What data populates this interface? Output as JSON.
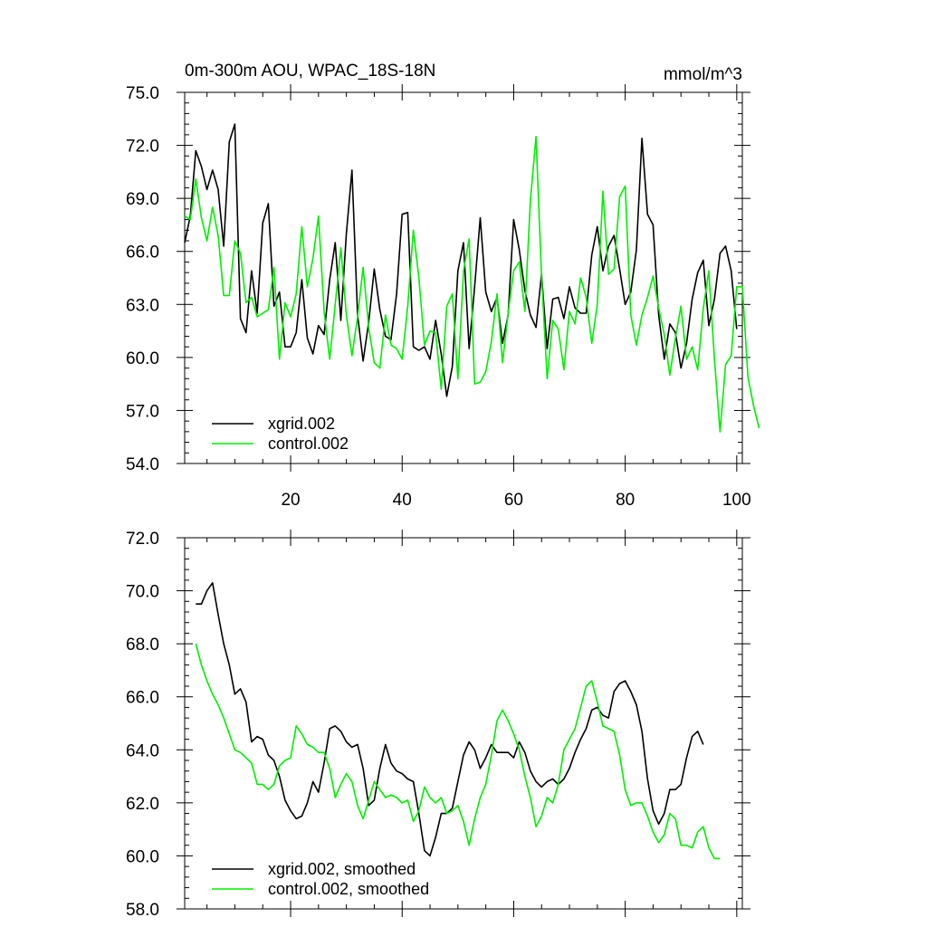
{
  "chart_data": [
    {
      "type": "line",
      "title": "0m-300m AOU, WPAC_18S-18N",
      "units": "mmol/m^3",
      "xlim": [
        1,
        101
      ],
      "ylim": [
        54,
        75
      ],
      "xticks": [
        20,
        40,
        60,
        80,
        100
      ],
      "yticks": [
        54,
        57,
        60,
        63,
        66,
        69,
        72,
        75
      ],
      "ytick_labels": [
        "54.0",
        "57.0",
        "60.0",
        "63.0",
        "66.0",
        "69.0",
        "72.0",
        "75.0"
      ],
      "show_xtick_labels": true,
      "series": [
        {
          "name": "xgrid.002",
          "color": "#000000",
          "x_start": 1,
          "values": [
            66.5,
            68.0,
            71.7,
            70.8,
            69.5,
            70.6,
            69.5,
            66.3,
            72.2,
            73.2,
            62.2,
            61.4,
            64.9,
            62.5,
            67.6,
            68.7,
            62.9,
            63.7,
            60.6,
            60.6,
            61.4,
            64.4,
            61.1,
            60.2,
            61.8,
            61.3,
            64.4,
            66.5,
            62.1,
            67.0,
            70.6,
            62.4,
            59.8,
            62.0,
            65.0,
            62.7,
            61.2,
            61.0,
            63.6,
            68.1,
            68.2,
            60.6,
            60.4,
            60.6,
            59.9,
            62.1,
            60.2,
            57.8,
            59.5,
            64.9,
            66.5,
            60.5,
            64.0,
            67.9,
            63.7,
            62.6,
            63.4,
            60.8,
            62.4,
            67.8,
            66.1,
            63.8,
            62.4,
            61.7,
            64.7,
            60.5,
            63.3,
            63.4,
            62.2,
            64.0,
            62.8,
            62.5,
            62.5,
            65.8,
            67.4,
            64.9,
            66.3,
            66.9,
            65.0,
            63.0,
            63.7,
            66.1,
            72.4,
            68.1,
            67.5,
            62.4,
            59.9,
            61.9,
            61.4,
            59.4,
            60.8,
            63.3,
            64.8,
            65.5,
            61.8,
            63.3,
            65.9,
            66.3,
            64.9,
            61.6
          ]
        },
        {
          "name": "control.002",
          "color": "#00ee00",
          "x_start": 1,
          "values": [
            68.0,
            67.8,
            70.1,
            67.9,
            66.6,
            68.5,
            66.9,
            63.5,
            63.5,
            66.6,
            65.9,
            63.1,
            63.4,
            62.3,
            62.5,
            62.7,
            65.1,
            59.9,
            63.1,
            62.3,
            63.6,
            67.4,
            64.0,
            65.6,
            68.0,
            62.6,
            59.9,
            63.0,
            66.2,
            62.4,
            60.1,
            62.3,
            65.1,
            61.7,
            59.7,
            59.4,
            62.4,
            60.7,
            60.5,
            59.9,
            62.9,
            67.2,
            64.5,
            60.7,
            61.5,
            61.4,
            58.2,
            62.9,
            63.6,
            58.8,
            64.9,
            66.7,
            58.5,
            58.6,
            59.2,
            60.9,
            63.6,
            59.7,
            62.5,
            64.9,
            65.4,
            62.6,
            68.9,
            72.5,
            64.6,
            58.8,
            62.1,
            61.6,
            59.3,
            62.6,
            61.9,
            64.5,
            63.4,
            60.8,
            63.0,
            69.4,
            64.7,
            65.0,
            69.1,
            69.7,
            62.4,
            60.7,
            62.4,
            63.4,
            64.6,
            62.8,
            61.3,
            59.0,
            61.1,
            62.9,
            59.9,
            60.6,
            59.3,
            62.8,
            64.9,
            59.9,
            55.8,
            59.6,
            60.1,
            64.0,
            64.0,
            58.9,
            57.3,
            56.0
          ]
        }
      ],
      "legend": {
        "position": "bottom-left"
      }
    },
    {
      "type": "line",
      "title": "",
      "xlim": [
        1,
        101
      ],
      "ylim": [
        58,
        72
      ],
      "xticks": [
        20,
        40,
        60,
        80,
        100
      ],
      "yticks": [
        58,
        60,
        62,
        64,
        66,
        68,
        70,
        72
      ],
      "ytick_labels": [
        "58.0",
        "60.0",
        "62.0",
        "64.0",
        "66.0",
        "68.0",
        "70.0",
        "72.0"
      ],
      "show_xtick_labels": false,
      "series": [
        {
          "name": "xgrid.002, smoothed",
          "color": "#000000",
          "x_start": 3,
          "values": [
            69.5,
            69.5,
            70.0,
            70.3,
            69.1,
            68.0,
            67.2,
            66.1,
            66.3,
            65.8,
            64.3,
            64.5,
            64.4,
            63.8,
            63.6,
            63.0,
            62.1,
            61.7,
            61.4,
            61.5,
            62.0,
            62.8,
            62.4,
            63.5,
            64.8,
            64.9,
            64.7,
            64.3,
            64.1,
            64.2,
            63.3,
            61.9,
            62.1,
            63.3,
            64.2,
            63.5,
            63.2,
            63.1,
            62.9,
            62.8,
            61.6,
            60.2,
            60.0,
            60.7,
            61.6,
            61.6,
            61.8,
            62.8,
            63.8,
            64.3,
            64.0,
            63.3,
            63.7,
            64.2,
            63.9,
            63.9,
            63.9,
            63.7,
            64.3,
            63.9,
            63.2,
            62.8,
            62.6,
            62.8,
            62.9,
            62.7,
            62.9,
            63.3,
            63.9,
            64.4,
            64.8,
            65.5,
            65.6,
            65.3,
            65.2,
            66.2,
            66.5,
            66.6,
            66.2,
            65.7,
            64.7,
            62.9,
            61.7,
            61.2,
            61.6,
            62.5,
            62.5,
            62.7,
            63.7,
            64.5,
            64.7,
            64.2
          ]
        },
        {
          "name": "control.002, smoothed",
          "color": "#00ee00",
          "x_start": 3,
          "values": [
            68.0,
            67.2,
            66.6,
            66.1,
            65.7,
            65.2,
            64.6,
            64.0,
            63.9,
            63.7,
            63.5,
            62.7,
            62.7,
            62.5,
            62.7,
            63.4,
            63.6,
            63.7,
            64.9,
            64.6,
            64.2,
            64.1,
            63.9,
            63.9,
            63.3,
            62.2,
            62.7,
            63.1,
            62.8,
            61.9,
            61.4,
            62.1,
            62.8,
            62.5,
            62.2,
            62.3,
            62.2,
            62.0,
            62.1,
            61.3,
            61.7,
            62.6,
            62.2,
            62.0,
            62.2,
            61.6,
            61.7,
            61.9,
            61.3,
            60.4,
            61.4,
            62.2,
            62.7,
            63.8,
            65.1,
            65.5,
            65.1,
            64.6,
            64.0,
            63.0,
            62.2,
            61.1,
            61.5,
            62.2,
            62.0,
            62.7,
            64.0,
            64.4,
            64.8,
            65.6,
            66.4,
            66.6,
            65.8,
            64.9,
            64.8,
            64.7,
            63.8,
            62.5,
            61.9,
            62.0,
            62.0,
            61.5,
            60.9,
            60.5,
            60.8,
            61.6,
            61.4,
            60.4,
            60.4,
            60.3,
            60.9,
            61.1,
            60.3,
            59.9,
            59.9
          ]
        }
      ],
      "legend": {
        "position": "bottom-left"
      }
    }
  ]
}
